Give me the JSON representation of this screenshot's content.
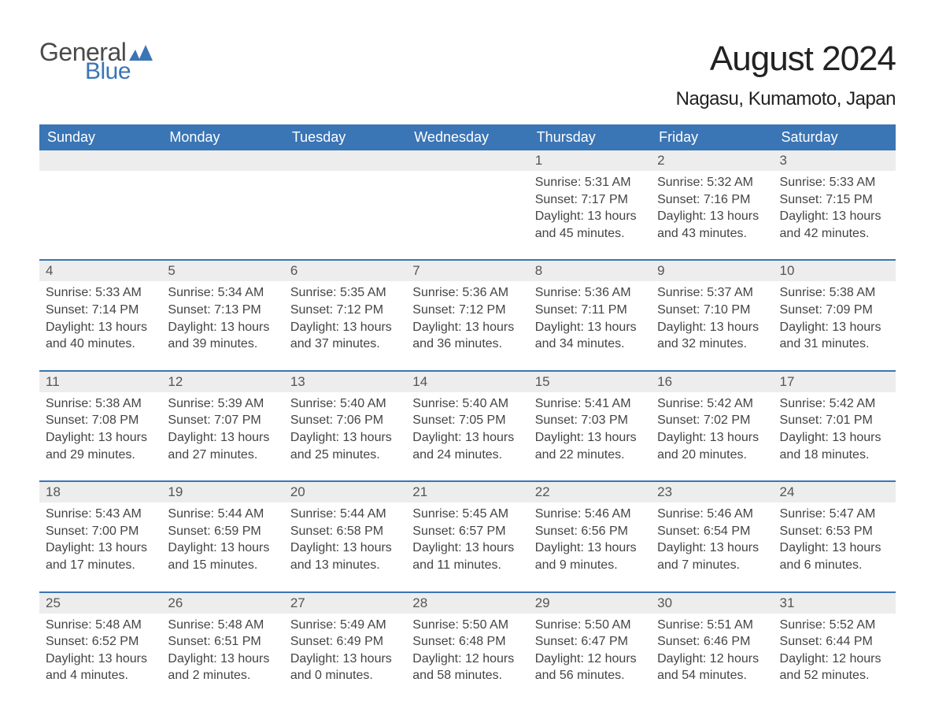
{
  "brand": {
    "part1": "General",
    "part2": "Blue"
  },
  "title": "August 2024",
  "location": "Nagasu, Kumamoto, Japan",
  "colors": {
    "brand_blue": "#3a75b5",
    "header_bg": "#3a75b5",
    "header_text": "#ffffff",
    "daynum_bg": "#ededed",
    "daynum_text": "#555555",
    "body_text": "#444444",
    "page_bg": "#ffffff"
  },
  "typography": {
    "title_fontsize": 44,
    "location_fontsize": 24,
    "header_fontsize": 18,
    "daynum_fontsize": 17,
    "body_fontsize": 16
  },
  "day_headers": [
    "Sunday",
    "Monday",
    "Tuesday",
    "Wednesday",
    "Thursday",
    "Friday",
    "Saturday"
  ],
  "weeks": [
    {
      "days": [
        null,
        null,
        null,
        null,
        {
          "num": "1",
          "sunrise": "5:31 AM",
          "sunset": "7:17 PM",
          "daylight": "13 hours and 45 minutes."
        },
        {
          "num": "2",
          "sunrise": "5:32 AM",
          "sunset": "7:16 PM",
          "daylight": "13 hours and 43 minutes."
        },
        {
          "num": "3",
          "sunrise": "5:33 AM",
          "sunset": "7:15 PM",
          "daylight": "13 hours and 42 minutes."
        }
      ]
    },
    {
      "days": [
        {
          "num": "4",
          "sunrise": "5:33 AM",
          "sunset": "7:14 PM",
          "daylight": "13 hours and 40 minutes."
        },
        {
          "num": "5",
          "sunrise": "5:34 AM",
          "sunset": "7:13 PM",
          "daylight": "13 hours and 39 minutes."
        },
        {
          "num": "6",
          "sunrise": "5:35 AM",
          "sunset": "7:12 PM",
          "daylight": "13 hours and 37 minutes."
        },
        {
          "num": "7",
          "sunrise": "5:36 AM",
          "sunset": "7:12 PM",
          "daylight": "13 hours and 36 minutes."
        },
        {
          "num": "8",
          "sunrise": "5:36 AM",
          "sunset": "7:11 PM",
          "daylight": "13 hours and 34 minutes."
        },
        {
          "num": "9",
          "sunrise": "5:37 AM",
          "sunset": "7:10 PM",
          "daylight": "13 hours and 32 minutes."
        },
        {
          "num": "10",
          "sunrise": "5:38 AM",
          "sunset": "7:09 PM",
          "daylight": "13 hours and 31 minutes."
        }
      ]
    },
    {
      "days": [
        {
          "num": "11",
          "sunrise": "5:38 AM",
          "sunset": "7:08 PM",
          "daylight": "13 hours and 29 minutes."
        },
        {
          "num": "12",
          "sunrise": "5:39 AM",
          "sunset": "7:07 PM",
          "daylight": "13 hours and 27 minutes."
        },
        {
          "num": "13",
          "sunrise": "5:40 AM",
          "sunset": "7:06 PM",
          "daylight": "13 hours and 25 minutes."
        },
        {
          "num": "14",
          "sunrise": "5:40 AM",
          "sunset": "7:05 PM",
          "daylight": "13 hours and 24 minutes."
        },
        {
          "num": "15",
          "sunrise": "5:41 AM",
          "sunset": "7:03 PM",
          "daylight": "13 hours and 22 minutes."
        },
        {
          "num": "16",
          "sunrise": "5:42 AM",
          "sunset": "7:02 PM",
          "daylight": "13 hours and 20 minutes."
        },
        {
          "num": "17",
          "sunrise": "5:42 AM",
          "sunset": "7:01 PM",
          "daylight": "13 hours and 18 minutes."
        }
      ]
    },
    {
      "days": [
        {
          "num": "18",
          "sunrise": "5:43 AM",
          "sunset": "7:00 PM",
          "daylight": "13 hours and 17 minutes."
        },
        {
          "num": "19",
          "sunrise": "5:44 AM",
          "sunset": "6:59 PM",
          "daylight": "13 hours and 15 minutes."
        },
        {
          "num": "20",
          "sunrise": "5:44 AM",
          "sunset": "6:58 PM",
          "daylight": "13 hours and 13 minutes."
        },
        {
          "num": "21",
          "sunrise": "5:45 AM",
          "sunset": "6:57 PM",
          "daylight": "13 hours and 11 minutes."
        },
        {
          "num": "22",
          "sunrise": "5:46 AM",
          "sunset": "6:56 PM",
          "daylight": "13 hours and 9 minutes."
        },
        {
          "num": "23",
          "sunrise": "5:46 AM",
          "sunset": "6:54 PM",
          "daylight": "13 hours and 7 minutes."
        },
        {
          "num": "24",
          "sunrise": "5:47 AM",
          "sunset": "6:53 PM",
          "daylight": "13 hours and 6 minutes."
        }
      ]
    },
    {
      "days": [
        {
          "num": "25",
          "sunrise": "5:48 AM",
          "sunset": "6:52 PM",
          "daylight": "13 hours and 4 minutes."
        },
        {
          "num": "26",
          "sunrise": "5:48 AM",
          "sunset": "6:51 PM",
          "daylight": "13 hours and 2 minutes."
        },
        {
          "num": "27",
          "sunrise": "5:49 AM",
          "sunset": "6:49 PM",
          "daylight": "13 hours and 0 minutes."
        },
        {
          "num": "28",
          "sunrise": "5:50 AM",
          "sunset": "6:48 PM",
          "daylight": "12 hours and 58 minutes."
        },
        {
          "num": "29",
          "sunrise": "5:50 AM",
          "sunset": "6:47 PM",
          "daylight": "12 hours and 56 minutes."
        },
        {
          "num": "30",
          "sunrise": "5:51 AM",
          "sunset": "6:46 PM",
          "daylight": "12 hours and 54 minutes."
        },
        {
          "num": "31",
          "sunrise": "5:52 AM",
          "sunset": "6:44 PM",
          "daylight": "12 hours and 52 minutes."
        }
      ]
    }
  ],
  "labels": {
    "sunrise": "Sunrise:",
    "sunset": "Sunset:",
    "daylight": "Daylight:"
  }
}
